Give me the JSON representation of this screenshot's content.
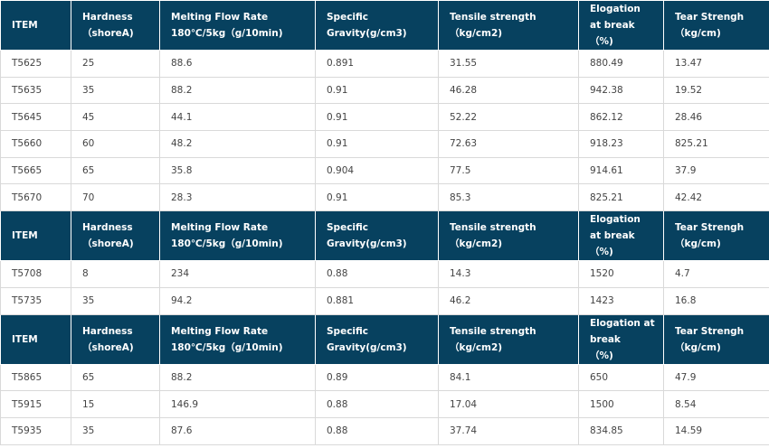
{
  "headers": [
    [
      "ITEM",
      "Hardness\n（shoreA)",
      "Melting Flow Rate\n180℃/5kg（g/10min)",
      "Specific\nGravity(g/cm3)",
      "Tensile strength\n（kg/cm2)",
      "Elogation\nat break\n（%)",
      "Tear Strengh\n（kg/cm)"
    ],
    [
      "ITEM",
      "Hardness\n（shoreA)",
      "Melting Flow Rate\n180℃/5kg（g/10min)",
      "Specific\nGravity(g/cm3)",
      "Tensile strength\n（kg/cm2)",
      "Elogation\nat break\n（%)",
      "Tear Strengh\n（kg/cm)"
    ],
    [
      "ITEM",
      "Hardness\n（shoreA)",
      "Melting Flow Rate\n180℃/5kg（g/10min)",
      "Specific\nGravity(g/cm3)",
      "Tensile strength\n（kg/cm2)",
      "Elogation at\nbreak\n（%)",
      "Tear Strengh\n（kg/cm)"
    ]
  ],
  "groups": [
    [
      [
        "T5625",
        "25",
        "88.6",
        "0.891",
        "31.55",
        "880.49",
        "13.47"
      ],
      [
        "T5635",
        "35",
        "88.2",
        "0.91",
        "46.28",
        "942.38",
        "19.52"
      ],
      [
        "T5645",
        "45",
        "44.1",
        "0.91",
        "52.22",
        "862.12",
        "28.46"
      ],
      [
        "T5660",
        "60",
        "48.2",
        "0.91",
        "72.63",
        "918.23",
        "825.21"
      ],
      [
        "T5665",
        "65",
        "35.8",
        "0.904",
        "77.5",
        "914.61",
        "37.9"
      ],
      [
        "T5670",
        "70",
        "28.3",
        "0.91",
        "85.3",
        "825.21",
        "42.42"
      ]
    ],
    [
      [
        "T5708",
        "8",
        "234",
        "0.88",
        "14.3",
        "1520",
        "4.7"
      ],
      [
        "T5735",
        "35",
        "94.2",
        "0.881",
        "46.2",
        "1423",
        "16.8"
      ]
    ],
    [
      [
        "T5865",
        "65",
        "88.2",
        "0.89",
        "84.1",
        "650",
        "47.9"
      ],
      [
        "T5915",
        "15",
        "146.9",
        "0.88",
        "17.04",
        "1500",
        "8.54"
      ],
      [
        "T5935",
        "35",
        "87.6",
        "0.88",
        "37.74",
        "834.85",
        "14.59"
      ]
    ]
  ]
}
